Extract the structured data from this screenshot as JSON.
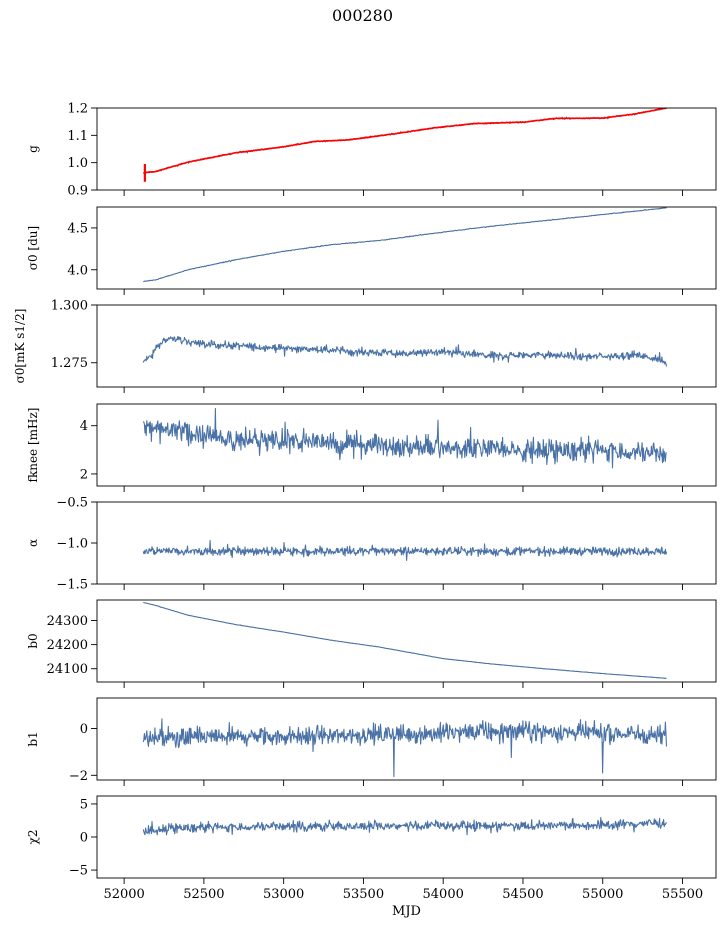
{
  "figure": {
    "title": "000280"
  },
  "chart_data": [
    {
      "type": "line",
      "ylabel": "g",
      "xlim": [
        51830,
        55710
      ],
      "ylim": [
        0.9,
        1.2
      ],
      "yticks": [
        0.9,
        1.0,
        1.1,
        1.2
      ],
      "ytick_labels": [
        "0.9",
        "1.0",
        "1.1",
        "1.2"
      ],
      "noise": 0.002,
      "series": [
        {
          "color": "#4a72a6",
          "x": [
            52120,
            52200,
            52400,
            52700,
            53000,
            53200,
            53400,
            53700,
            53950,
            54200,
            54500,
            54700,
            55000,
            55200,
            55400
          ],
          "y": [
            0.963,
            0.968,
            1.002,
            1.036,
            1.058,
            1.078,
            1.083,
            1.106,
            1.128,
            1.143,
            1.148,
            1.162,
            1.163,
            1.178,
            1.2
          ]
        },
        {
          "color": "#ff0000",
          "x": [
            52120,
            52200,
            52400,
            52700,
            53000,
            53200,
            53400,
            53700,
            53950,
            54200,
            54500,
            54700,
            55000,
            55200,
            55400
          ],
          "y": [
            0.963,
            0.968,
            1.002,
            1.036,
            1.058,
            1.078,
            1.083,
            1.106,
            1.128,
            1.143,
            1.148,
            1.162,
            1.163,
            1.178,
            1.2
          ]
        }
      ],
      "spike": {
        "x": 52130,
        "y": [
          0.93,
          0.995
        ]
      }
    },
    {
      "type": "line",
      "ylabel": "σ0 [du]",
      "xlim": [
        51830,
        55710
      ],
      "ylim": [
        3.77,
        4.75
      ],
      "yticks": [
        4.0,
        4.5
      ],
      "ytick_labels": [
        "4.0",
        "4.5"
      ],
      "noise": 0.004,
      "series": [
        {
          "color": "#4a72a6",
          "x": [
            52120,
            52200,
            52400,
            52700,
            53000,
            53300,
            53600,
            54000,
            54300,
            54600,
            55000,
            55400
          ],
          "y": [
            3.86,
            3.88,
            4.0,
            4.12,
            4.22,
            4.3,
            4.35,
            4.45,
            4.52,
            4.58,
            4.66,
            4.74
          ]
        }
      ]
    },
    {
      "type": "line",
      "ylabel": "σ0[mK s1/2]",
      "xlim": [
        51830,
        55710
      ],
      "ylim": [
        1.2645,
        1.3
      ],
      "yticks": [
        1.275,
        1.3
      ],
      "ytick_labels": [
        "1.275",
        "1.300"
      ],
      "noise": 0.0016,
      "series": [
        {
          "color": "#4a72a6",
          "x": [
            52120,
            52180,
            52230,
            52300,
            52500,
            52800,
            53100,
            53400,
            53700,
            54000,
            54300,
            54600,
            54900,
            55200,
            55350,
            55400
          ],
          "y": [
            1.276,
            1.279,
            1.284,
            1.2855,
            1.283,
            1.282,
            1.281,
            1.28,
            1.279,
            1.2795,
            1.278,
            1.2785,
            1.2775,
            1.2785,
            1.2765,
            1.2745
          ]
        }
      ]
    },
    {
      "type": "line",
      "ylabel": "fknee [mHz]",
      "xlim": [
        51830,
        55710
      ],
      "ylim": [
        1.5,
        4.9
      ],
      "yticks": [
        2,
        4
      ],
      "ytick_labels": [
        "2",
        "4"
      ],
      "noise": 0.45,
      "series": [
        {
          "color": "#4a72a6",
          "x": [
            52120,
            52300,
            52600,
            53000,
            53500,
            54000,
            54500,
            55000,
            55400
          ],
          "y": [
            4.0,
            3.8,
            3.5,
            3.4,
            3.2,
            3.1,
            3.0,
            3.0,
            2.8
          ]
        }
      ]
    },
    {
      "type": "line",
      "ylabel": "α",
      "xlim": [
        51830,
        55710
      ],
      "ylim": [
        -1.5,
        -0.5
      ],
      "yticks": [
        -1.5,
        -1.0,
        -0.5
      ],
      "ytick_labels": [
        "−1.5",
        "−1.0",
        "−0.5"
      ],
      "noise": 0.05,
      "series": [
        {
          "color": "#4a72a6",
          "x": [
            52120,
            53000,
            54000,
            55000,
            55400
          ],
          "y": [
            -1.1,
            -1.1,
            -1.1,
            -1.1,
            -1.1
          ]
        }
      ]
    },
    {
      "type": "line",
      "ylabel": "b0",
      "xlim": [
        51830,
        55710
      ],
      "ylim": [
        24045,
        24385
      ],
      "yticks": [
        24100,
        24200,
        24300
      ],
      "ytick_labels": [
        "24100",
        "24200",
        "24300"
      ],
      "noise": 0.6,
      "series": [
        {
          "color": "#4a72a6",
          "x": [
            52120,
            52200,
            52400,
            52700,
            53000,
            53300,
            53600,
            54000,
            54300,
            54600,
            55000,
            55400
          ],
          "y": [
            24375,
            24362,
            24322,
            24283,
            24252,
            24218,
            24190,
            24142,
            24120,
            24102,
            24080,
            24060
          ]
        }
      ]
    },
    {
      "type": "line",
      "ylabel": "b1",
      "xlim": [
        51830,
        55710
      ],
      "ylim": [
        -2.2,
        1.3
      ],
      "yticks": [
        -2,
        0
      ],
      "ytick_labels": [
        "−2",
        "0"
      ],
      "noise": 0.4,
      "series": [
        {
          "color": "#4a72a6",
          "x": [
            52120,
            53000,
            54000,
            54500,
            55000,
            55400
          ],
          "y": [
            -0.4,
            -0.35,
            -0.2,
            -0.1,
            -0.2,
            -0.3
          ]
        }
      ],
      "dips": [
        {
          "x": 53690,
          "y": -2.05
        },
        {
          "x": 55000,
          "y": -1.9
        }
      ]
    },
    {
      "type": "line",
      "ylabel": "χ2",
      "xlim": [
        51830,
        55710
      ],
      "ylim": [
        -6.2,
        6.2
      ],
      "yticks": [
        -5,
        0,
        5
      ],
      "ytick_labels": [
        "−5",
        "0",
        "5"
      ],
      "noise": 0.7,
      "series": [
        {
          "color": "#4a72a6",
          "x": [
            52120,
            52300,
            53000,
            54000,
            55000,
            55400
          ],
          "y": [
            0.8,
            1.4,
            1.6,
            1.7,
            1.8,
            2.2
          ]
        }
      ],
      "xlabel": "MJD",
      "xticks": [
        52000,
        52500,
        53000,
        53500,
        54000,
        54500,
        55000,
        55500
      ],
      "xtick_labels": [
        "52000",
        "52500",
        "53000",
        "53500",
        "54000",
        "54500",
        "55000",
        "55500"
      ]
    }
  ]
}
